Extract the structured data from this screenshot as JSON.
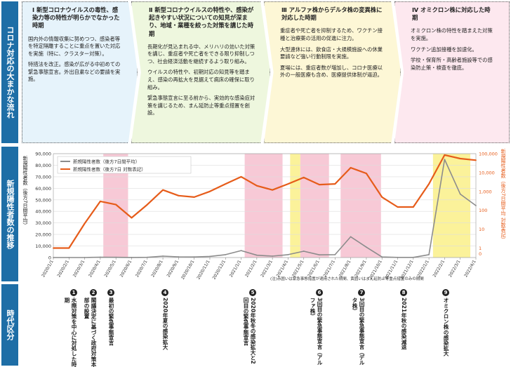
{
  "side": {
    "policy": "コロナ対応の大まかな流れ",
    "cases": "新規陽性者数の推移",
    "periods": "時代区分"
  },
  "phases": [
    {
      "heading": "Ⅰ 新型コロナウイルスの毒性、感染力等の特性が明らかでなかった時期",
      "paragraphs": [
        "国内外の情報収集に努めつつ、感染者等を特定隔離することに重点を置いた対応を実施（特に、クラスター対策）。",
        "特措法を改正。感染が広がる中初めての緊急事態宣言。外出自粛などの要請を実施。"
      ]
    },
    {
      "heading": "Ⅱ 新型コロナウイルスの特性や、感染が起きやすい状況についての知見が深まり、地域・業種を絞った対策を講じた時期",
      "paragraphs": [
        "長期化が見込まれる中、メリハリの効いた対策を講じ、重症者や死亡者をできる限り抑制しつつ、社会経済活動を継続するよう取り組み。",
        "ウイルスの特性や、初期対応の知見等を踏まえ、感染の再拡大を見据えて病床の確保に取り組み。",
        "緊急事態宣言に至る前から、実効的な感染症対策を講じるため、まん延防止等重点措置を創設。"
      ]
    },
    {
      "heading": "Ⅲ アルファ株からデルタ株の変異株に対応した時期",
      "paragraphs": [
        "重症者や死亡者を抑制するため、ワクチン接種と治療薬の活用の促進に注力。",
        "大型連休には、飲食店・大規模施設への休業要請など強い行動制限を実施。",
        "夏場には、重症者数が増加し、コロナ医療以外の一般医療も含め、医療提供体制が逼迫。"
      ]
    },
    {
      "heading": "Ⅳ オミクロン株に対応した時期",
      "paragraphs": [
        "オミクロン株の特性を踏まえた対策を実施。",
        "ワクチン追加接種を加速化。",
        "学校・保育所・高齢者施設等での感染防止策・検査を徹底。"
      ]
    }
  ],
  "chart_labels": {
    "y_left": "新規陽性者数（後方7日間平均）",
    "y_right": "新規陽性者数（後方7日間平均 対数表記）",
    "note": "(注)赤囲いは緊急事態措置が適用された期間、黄囲いはまん延防止等重点措置のみの期間"
  },
  "chart_data": {
    "type": "line",
    "x": [
      "2020/1/1",
      "2020/2/1",
      "2020/3/1",
      "2020/4/1",
      "2020/5/1",
      "2020/6/1",
      "2020/7/1",
      "2020/8/1",
      "2020/9/1",
      "2020/10/1",
      "2020/11/1",
      "2020/12/1",
      "2021/1/1",
      "2021/2/1",
      "2021/3/1",
      "2021/4/1",
      "2021/5/1",
      "2021/6/1",
      "2021/7/1",
      "2021/8/1",
      "2021/9/1",
      "2021/10/1",
      "2021/11/1",
      "2021/12/1",
      "2022/1/1",
      "2022/2/1",
      "2022/3/1",
      "2022/4/1"
    ],
    "series": [
      {
        "name": "新規陽性者数（後方7日間平均）",
        "axis": "left",
        "color": "#8c8c8c",
        "values": [
          1,
          1,
          20,
          300,
          200,
          40,
          200,
          1200,
          600,
          500,
          1000,
          2500,
          6000,
          2000,
          1200,
          2500,
          5500,
          2300,
          2500,
          18000,
          9000,
          500,
          150,
          150,
          2500,
          85000,
          55000,
          45000
        ]
      },
      {
        "name": "新規陽性者数（後方7日 対数表記）",
        "axis": "right",
        "color": "#e65c1a",
        "values": [
          1,
          1,
          20,
          300,
          200,
          40,
          200,
          1200,
          600,
          500,
          1000,
          2500,
          6000,
          2000,
          1200,
          2500,
          5500,
          2300,
          2500,
          18000,
          9000,
          500,
          150,
          150,
          2500,
          85000,
          55000,
          45000
        ]
      }
    ],
    "y_left_ticks": [
      "0",
      "10,000",
      "20,000",
      "30,000",
      "40,000",
      "50,000",
      "60,000",
      "70,000",
      "80,000",
      "90,000"
    ],
    "y_right_ticks": [
      "0",
      "1",
      "10",
      "100",
      "1,000",
      "10,000",
      "100,000"
    ],
    "emergency_periods": [
      [
        "2020/4/7",
        "2020/5/25"
      ],
      [
        "2021/1/8",
        "2021/3/21"
      ],
      [
        "2021/4/25",
        "2021/6/20"
      ],
      [
        "2021/7/12",
        "2021/9/30"
      ]
    ],
    "priority_periods": [
      [
        "2021/4/5",
        "2021/4/25"
      ],
      [
        "2022/1/9",
        "2022/3/21"
      ]
    ],
    "legend_position": "top-left"
  },
  "periods": [
    {
      "num": "1",
      "label": "水際対策を中心に対処した時期"
    },
    {
      "num": "2",
      "label": "閣議決定に基づく政府対策本部の設置"
    },
    {
      "num": "3",
      "label": "最初の緊急事態宣言"
    },
    {
      "num": "4",
      "label": "2020年夏の感染拡大"
    },
    {
      "num": "5",
      "label": "2020年秋冬の感染拡大と2回目の緊急事態宣言"
    },
    {
      "num": "6",
      "label": "3回目の緊急事態宣言（アルファ株）"
    },
    {
      "num": "7",
      "label": "3回目の緊急事態宣言（デルタ株）"
    },
    {
      "num": "8",
      "label": "2021年秋の感染減退"
    },
    {
      "num": "9",
      "label": "オミクロン株の感染拡大"
    }
  ],
  "colors": {
    "side": "#1e6ea6",
    "linear": "#8c8c8c",
    "log": "#e65c1a",
    "emergency": "#f7c9d6",
    "priority": "#fbf29a"
  }
}
